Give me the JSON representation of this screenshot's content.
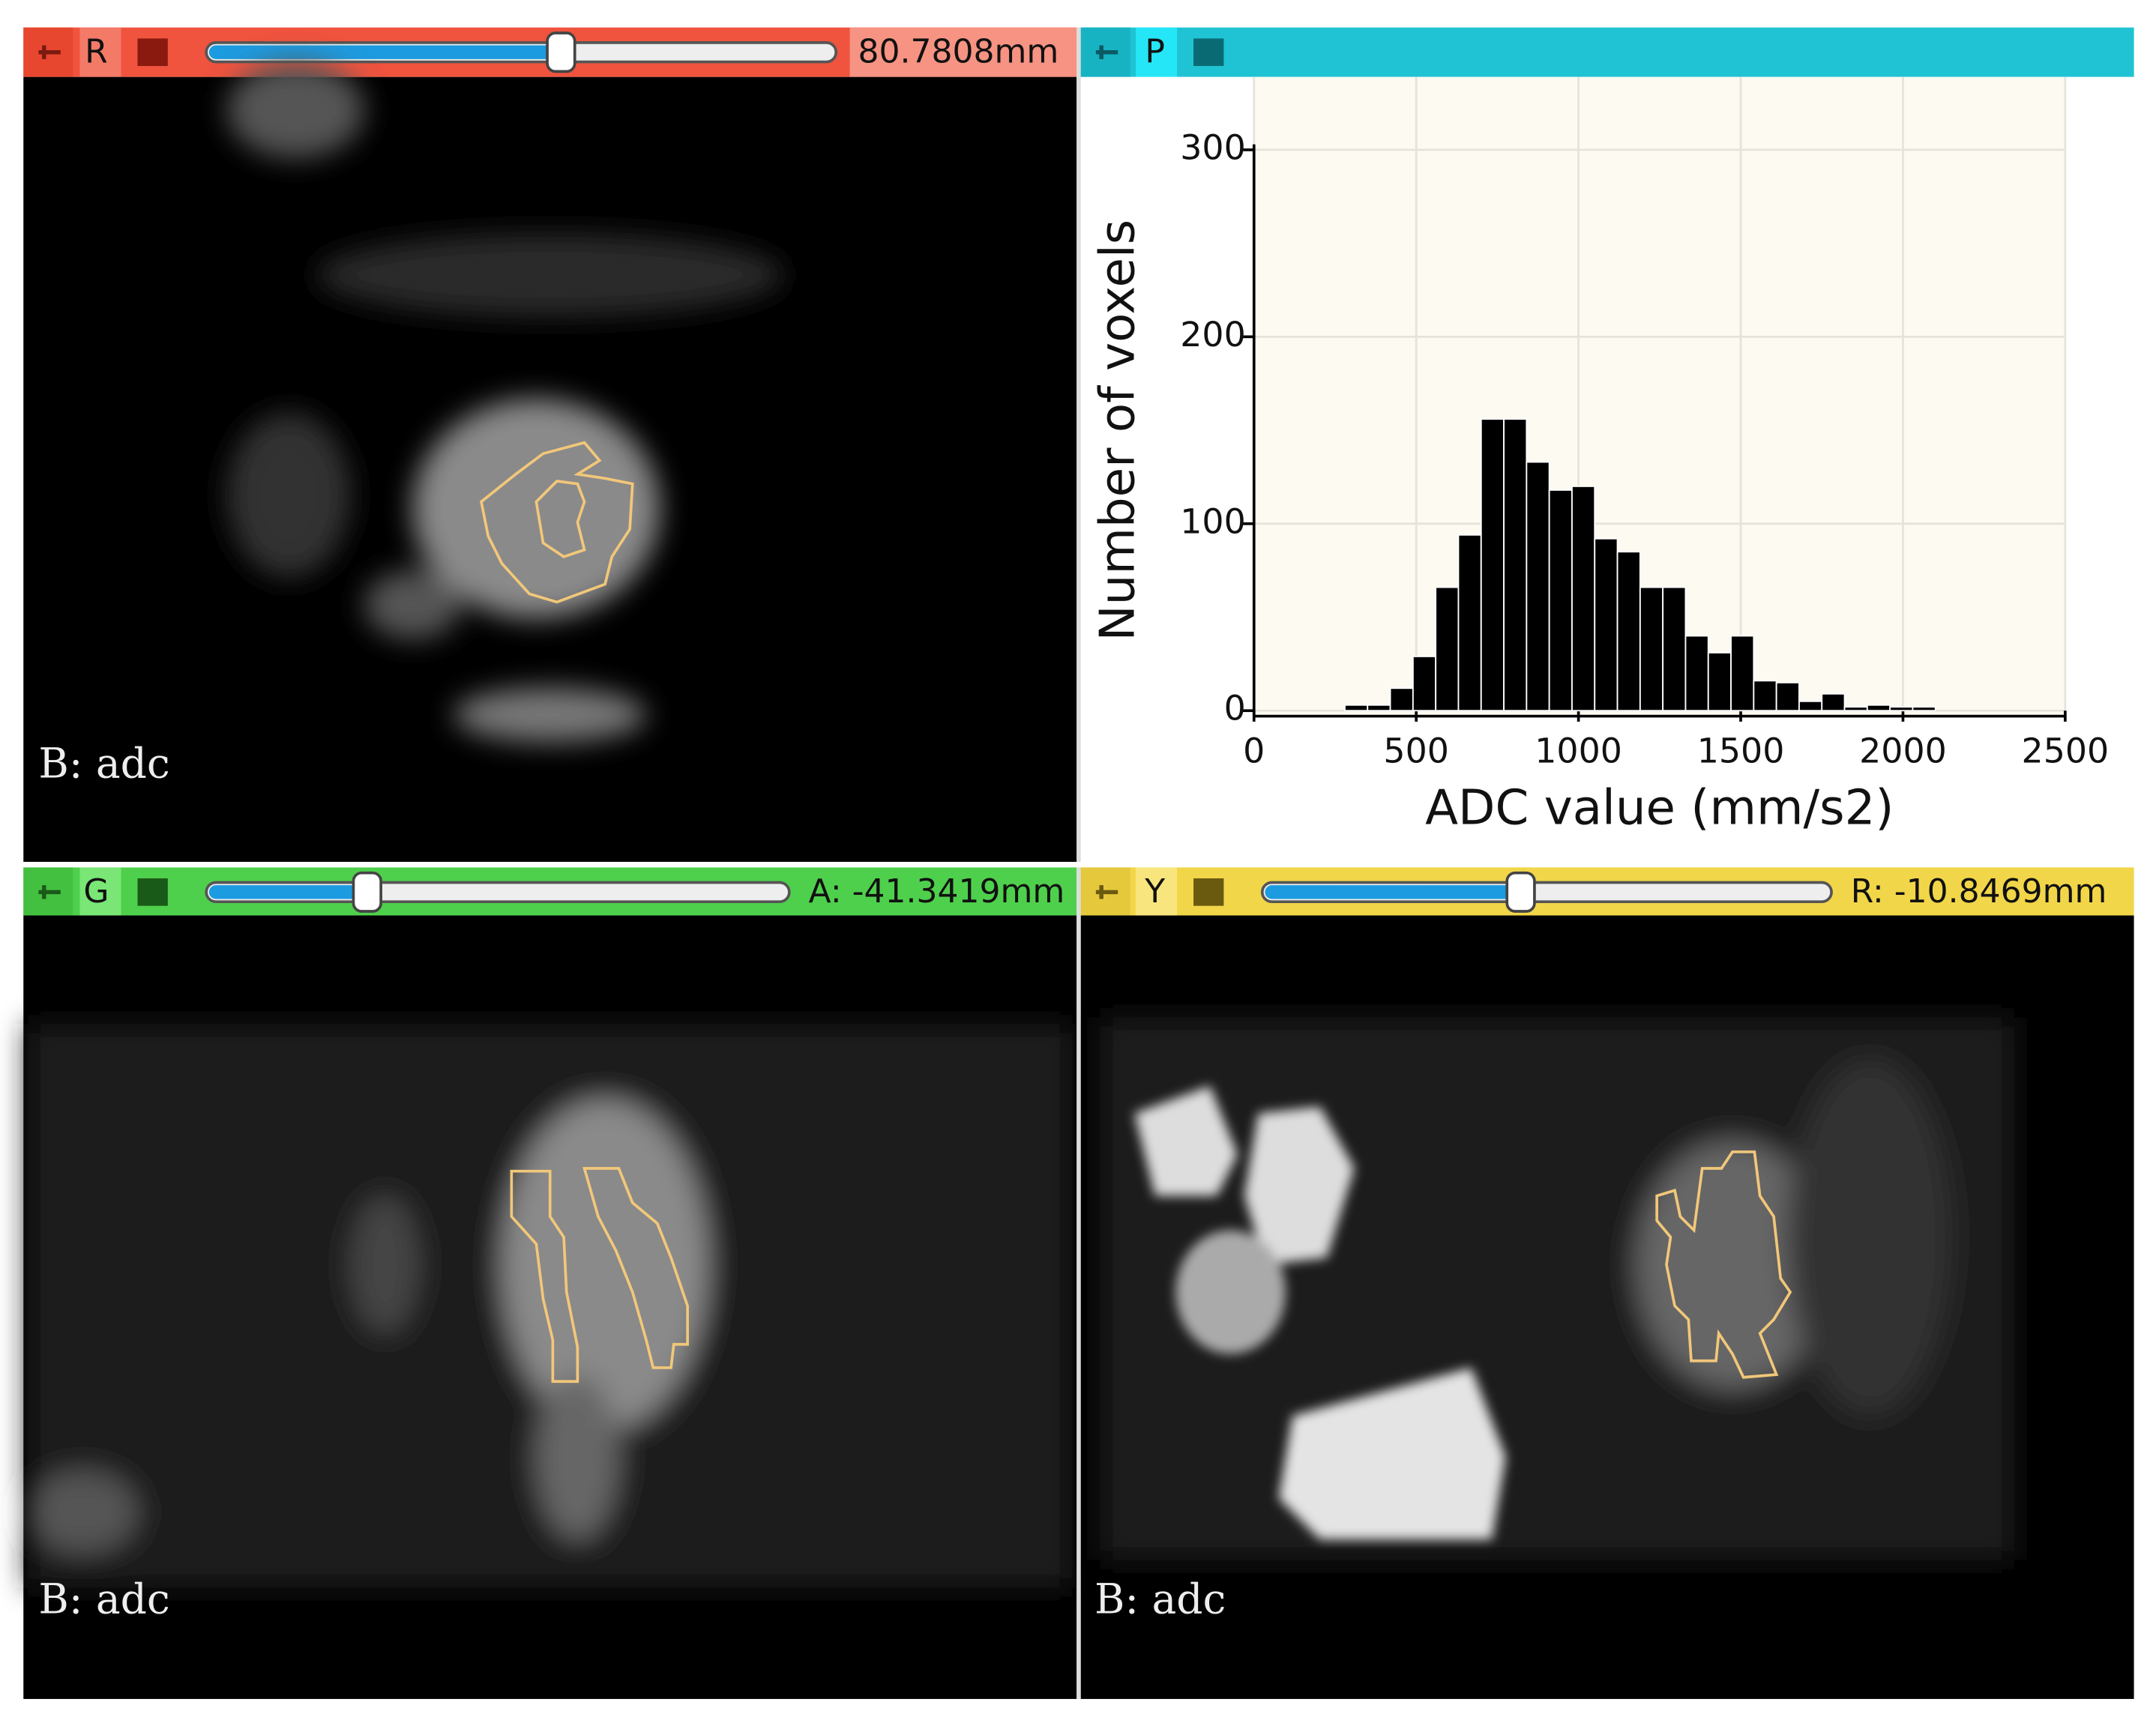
{
  "views": [
    {
      "letter": "R",
      "offset": "80.7808mm",
      "label": "B: adc"
    },
    {
      "letter": "P"
    },
    {
      "letter": "G",
      "offset": "A: -41.3419mm",
      "label": "B: adc"
    },
    {
      "letter": "Y",
      "offset": "R: -10.8469mm",
      "label": "B: adc"
    }
  ],
  "chart_data": {
    "type": "histogram",
    "xlabel": "ADC value (mm/s2)",
    "ylabel": "Number of voxels",
    "bins": [
      280,
      350,
      420,
      490,
      560,
      630,
      700,
      770,
      840,
      910,
      980,
      1050,
      1120,
      1190,
      1260,
      1330,
      1400,
      1470,
      1540,
      1610,
      1680,
      1750,
      1820,
      1890,
      1960,
      2030,
      2100
    ],
    "values": [
      3,
      3,
      12,
      29,
      66,
      94,
      156,
      156,
      133,
      118,
      120,
      92,
      85,
      66,
      66,
      40,
      31,
      40,
      16,
      15,
      5,
      9,
      2,
      3,
      2,
      2
    ],
    "color": "#000000",
    "xlim": [
      0,
      2500
    ],
    "xticks": [
      0,
      500,
      1000,
      1500,
      2000,
      2500
    ],
    "ylim": [
      0,
      300
    ],
    "yticks": [
      0,
      100,
      200,
      300
    ],
    "grid": true
  }
}
